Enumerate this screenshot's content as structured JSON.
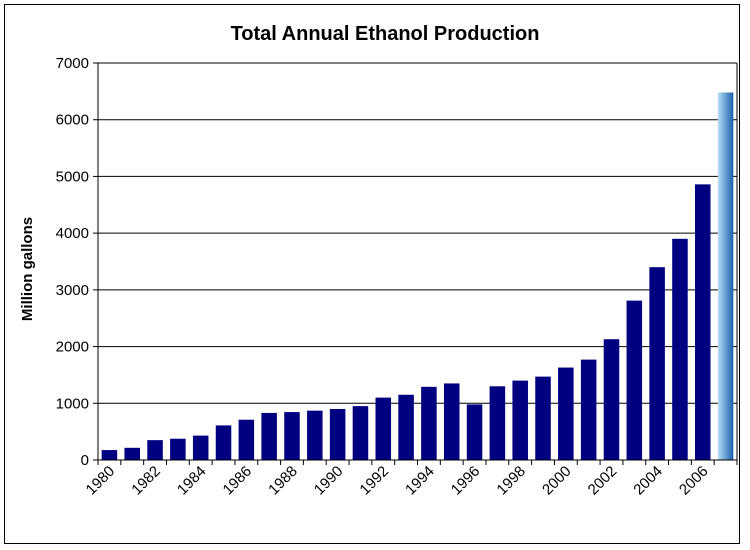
{
  "chart_data": {
    "type": "bar",
    "title": "Total Annual Ethanol Production",
    "xlabel": "",
    "ylabel": "Million gallons",
    "ylim": [
      0,
      7000
    ],
    "yticks": [
      0,
      1000,
      2000,
      3000,
      4000,
      5000,
      6000,
      7000
    ],
    "grid": true,
    "legend": "none",
    "categories": [
      1980,
      1981,
      1982,
      1983,
      1984,
      1985,
      1986,
      1987,
      1988,
      1989,
      1990,
      1991,
      1992,
      1993,
      1994,
      1995,
      1996,
      1997,
      1998,
      1999,
      2000,
      2001,
      2002,
      2003,
      2004,
      2005,
      2006,
      2007
    ],
    "tick_labels": [
      "1980",
      "1982",
      "1984",
      "1986",
      "1988",
      "1990",
      "1992",
      "1994",
      "1996",
      "1998",
      "2000",
      "2002",
      "2004",
      "2006"
    ],
    "values": [
      175,
      215,
      350,
      375,
      430,
      610,
      710,
      830,
      845,
      870,
      900,
      950,
      1100,
      1150,
      1290,
      1350,
      980,
      1300,
      1400,
      1470,
      1630,
      1770,
      2130,
      2810,
      3400,
      3900,
      4860,
      6480
    ],
    "colors": {
      "bar": "#000080",
      "highlight_bar_light": "#b7e0f5",
      "highlight_bar_dark": "#1a5fb0"
    }
  }
}
